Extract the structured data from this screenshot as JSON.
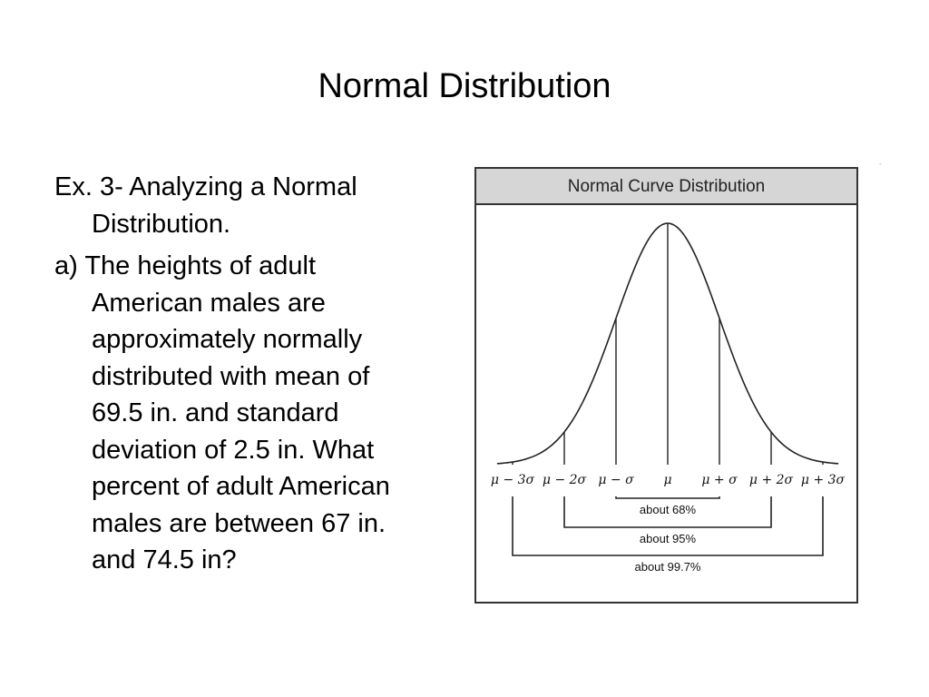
{
  "slide": {
    "title": "Normal Distribution",
    "corner_mark": "-"
  },
  "text": {
    "paragraph_1": [
      "Ex. 3- Analyzing a Normal",
      "Distribution."
    ],
    "paragraph_2": [
      "a) The heights of adult",
      "American males are",
      "approximately normally",
      "distributed with mean of",
      "69.5 in. and standard",
      "deviation of 2.5 in.  What",
      "percent of adult American",
      "males are between 67 in.",
      "and 74.5 in?"
    ]
  },
  "figure": {
    "header": "Normal Curve Distribution",
    "tick_labels": [
      "μ − 3σ",
      "μ − 2σ",
      "μ − σ",
      "μ",
      "μ + σ",
      "μ + 2σ",
      "μ + 3σ"
    ],
    "ranges": [
      {
        "label": "about 68%",
        "from_sigma": -1,
        "to_sigma": 1
      },
      {
        "label": "about 95%",
        "from_sigma": -2,
        "to_sigma": 2
      },
      {
        "label": "about 99.7%",
        "from_sigma": -3,
        "to_sigma": 3
      }
    ],
    "colors": {
      "curve": "#222222",
      "header_bg": "#d6d6d6",
      "border": "#333333"
    }
  }
}
